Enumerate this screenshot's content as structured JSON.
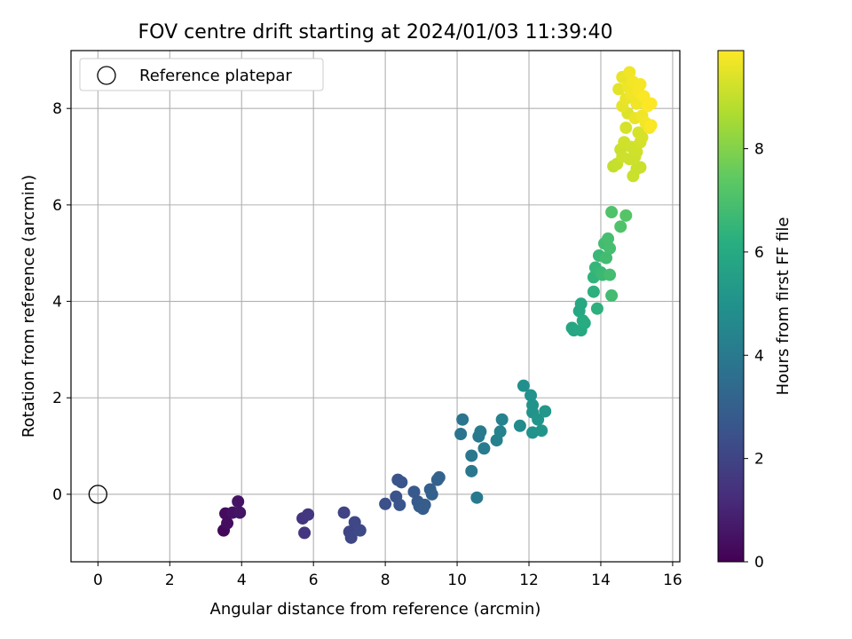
{
  "chart_data": {
    "type": "scatter",
    "title": "FOV centre drift starting at 2024/01/03 11:39:40",
    "xlabel": "Angular distance from reference (arcmin)",
    "ylabel": "Rotation from reference (arcmin)",
    "xlim": [
      -0.75,
      16.2
    ],
    "ylim": [
      -1.4,
      9.2
    ],
    "xticks": [
      0,
      2,
      4,
      6,
      8,
      10,
      12,
      14,
      16
    ],
    "yticks": [
      0,
      2,
      4,
      6,
      8
    ],
    "grid": true,
    "legend": {
      "position": "upper-left",
      "entries": [
        "Reference platepar"
      ]
    },
    "reference_point": {
      "x": 0,
      "y": 0,
      "marker": "open-circle"
    },
    "colorbar": {
      "label": "Hours from first FF file",
      "colormap": "viridis",
      "range": [
        0,
        9.9
      ],
      "ticks": [
        0,
        2,
        4,
        6,
        8
      ]
    },
    "series": [
      {
        "marker": "filled-circle",
        "points": [
          {
            "x": 3.5,
            "y": -0.75,
            "h": 0.2
          },
          {
            "x": 3.55,
            "y": -0.4,
            "h": 0.3
          },
          {
            "x": 3.6,
            "y": -0.6,
            "h": 0.35
          },
          {
            "x": 3.75,
            "y": -0.38,
            "h": 0.45
          },
          {
            "x": 3.9,
            "y": -0.15,
            "h": 0.5
          },
          {
            "x": 3.95,
            "y": -0.38,
            "h": 0.55
          },
          {
            "x": 5.7,
            "y": -0.5,
            "h": 1.5
          },
          {
            "x": 5.75,
            "y": -0.8,
            "h": 1.55
          },
          {
            "x": 5.85,
            "y": -0.42,
            "h": 1.6
          },
          {
            "x": 6.85,
            "y": -0.38,
            "h": 2.0
          },
          {
            "x": 7.0,
            "y": -0.78,
            "h": 2.05
          },
          {
            "x": 7.05,
            "y": -0.9,
            "h": 2.1
          },
          {
            "x": 7.15,
            "y": -0.58,
            "h": 2.1
          },
          {
            "x": 7.3,
            "y": -0.75,
            "h": 2.2
          },
          {
            "x": 8.0,
            "y": -0.2,
            "h": 2.4
          },
          {
            "x": 8.3,
            "y": -0.05,
            "h": 2.5
          },
          {
            "x": 8.35,
            "y": 0.3,
            "h": 2.55
          },
          {
            "x": 8.4,
            "y": -0.22,
            "h": 2.6
          },
          {
            "x": 8.45,
            "y": 0.25,
            "h": 2.6
          },
          {
            "x": 8.8,
            "y": 0.05,
            "h": 2.75
          },
          {
            "x": 8.9,
            "y": -0.15,
            "h": 2.8
          },
          {
            "x": 8.95,
            "y": -0.25,
            "h": 2.85
          },
          {
            "x": 9.05,
            "y": -0.3,
            "h": 2.9
          },
          {
            "x": 9.1,
            "y": -0.22,
            "h": 2.9
          },
          {
            "x": 9.25,
            "y": 0.1,
            "h": 3.0
          },
          {
            "x": 9.3,
            "y": 0.0,
            "h": 3.05
          },
          {
            "x": 9.45,
            "y": 0.3,
            "h": 3.1
          },
          {
            "x": 9.5,
            "y": 0.35,
            "h": 3.15
          },
          {
            "x": 10.1,
            "y": 1.25,
            "h": 3.8
          },
          {
            "x": 10.15,
            "y": 1.55,
            "h": 3.85
          },
          {
            "x": 10.4,
            "y": 0.8,
            "h": 3.9
          },
          {
            "x": 10.4,
            "y": 0.48,
            "h": 3.95
          },
          {
            "x": 10.55,
            "y": -0.07,
            "h": 4.0
          },
          {
            "x": 10.6,
            "y": 1.2,
            "h": 4.0
          },
          {
            "x": 10.65,
            "y": 1.3,
            "h": 4.05
          },
          {
            "x": 10.75,
            "y": 0.95,
            "h": 4.1
          },
          {
            "x": 11.1,
            "y": 1.12,
            "h": 4.3
          },
          {
            "x": 11.2,
            "y": 1.3,
            "h": 4.35
          },
          {
            "x": 11.25,
            "y": 1.55,
            "h": 4.4
          },
          {
            "x": 11.75,
            "y": 1.42,
            "h": 4.7
          },
          {
            "x": 11.85,
            "y": 2.25,
            "h": 4.9
          },
          {
            "x": 12.05,
            "y": 2.05,
            "h": 5.0
          },
          {
            "x": 12.1,
            "y": 1.85,
            "h": 5.05
          },
          {
            "x": 12.1,
            "y": 1.7,
            "h": 5.05
          },
          {
            "x": 12.1,
            "y": 1.28,
            "h": 5.0
          },
          {
            "x": 12.25,
            "y": 1.55,
            "h": 5.1
          },
          {
            "x": 12.35,
            "y": 1.32,
            "h": 5.1
          },
          {
            "x": 12.45,
            "y": 1.72,
            "h": 5.2
          },
          {
            "x": 13.2,
            "y": 3.45,
            "h": 5.8
          },
          {
            "x": 13.25,
            "y": 3.4,
            "h": 5.85
          },
          {
            "x": 13.4,
            "y": 3.8,
            "h": 5.9
          },
          {
            "x": 13.45,
            "y": 3.95,
            "h": 5.95
          },
          {
            "x": 13.45,
            "y": 3.4,
            "h": 5.95
          },
          {
            "x": 13.5,
            "y": 3.6,
            "h": 6.0
          },
          {
            "x": 13.55,
            "y": 3.55,
            "h": 6.05
          },
          {
            "x": 13.8,
            "y": 4.2,
            "h": 6.3
          },
          {
            "x": 13.8,
            "y": 4.5,
            "h": 6.4
          },
          {
            "x": 13.85,
            "y": 4.7,
            "h": 6.5
          },
          {
            "x": 13.9,
            "y": 3.85,
            "h": 6.3
          },
          {
            "x": 13.95,
            "y": 4.95,
            "h": 6.6
          },
          {
            "x": 14.0,
            "y": 4.6,
            "h": 6.6
          },
          {
            "x": 14.05,
            "y": 4.55,
            "h": 6.65
          },
          {
            "x": 14.1,
            "y": 5.2,
            "h": 6.8
          },
          {
            "x": 14.15,
            "y": 4.9,
            "h": 6.8
          },
          {
            "x": 14.2,
            "y": 5.3,
            "h": 6.9
          },
          {
            "x": 14.25,
            "y": 5.1,
            "h": 6.9
          },
          {
            "x": 14.25,
            "y": 4.55,
            "h": 6.85
          },
          {
            "x": 14.3,
            "y": 5.85,
            "h": 7.1
          },
          {
            "x": 14.3,
            "y": 4.12,
            "h": 6.8
          },
          {
            "x": 14.55,
            "y": 5.55,
            "h": 7.1
          },
          {
            "x": 14.7,
            "y": 5.78,
            "h": 7.2
          },
          {
            "x": 14.35,
            "y": 6.8,
            "h": 9.0
          },
          {
            "x": 14.45,
            "y": 6.85,
            "h": 9.05
          },
          {
            "x": 14.55,
            "y": 7.15,
            "h": 9.1
          },
          {
            "x": 14.6,
            "y": 7.0,
            "h": 9.15
          },
          {
            "x": 14.65,
            "y": 7.3,
            "h": 9.2
          },
          {
            "x": 14.7,
            "y": 7.6,
            "h": 9.3
          },
          {
            "x": 14.75,
            "y": 7.9,
            "h": 9.4
          },
          {
            "x": 14.8,
            "y": 6.95,
            "h": 9.15
          },
          {
            "x": 14.85,
            "y": 7.2,
            "h": 9.2
          },
          {
            "x": 14.9,
            "y": 6.6,
            "h": 9.1
          },
          {
            "x": 14.95,
            "y": 7.0,
            "h": 9.15
          },
          {
            "x": 15.0,
            "y": 7.1,
            "h": 9.2
          },
          {
            "x": 15.0,
            "y": 6.75,
            "h": 9.1
          },
          {
            "x": 15.05,
            "y": 7.5,
            "h": 9.3
          },
          {
            "x": 15.1,
            "y": 7.3,
            "h": 9.25
          },
          {
            "x": 15.1,
            "y": 6.78,
            "h": 9.1
          },
          {
            "x": 15.15,
            "y": 7.4,
            "h": 9.3
          },
          {
            "x": 14.5,
            "y": 8.4,
            "h": 9.5
          },
          {
            "x": 14.6,
            "y": 8.65,
            "h": 9.6
          },
          {
            "x": 14.6,
            "y": 8.05,
            "h": 9.55
          },
          {
            "x": 14.7,
            "y": 8.2,
            "h": 9.6
          },
          {
            "x": 14.75,
            "y": 8.45,
            "h": 9.65
          },
          {
            "x": 14.8,
            "y": 8.75,
            "h": 9.7
          },
          {
            "x": 14.85,
            "y": 8.3,
            "h": 9.7
          },
          {
            "x": 14.9,
            "y": 8.55,
            "h": 9.75
          },
          {
            "x": 14.95,
            "y": 7.8,
            "h": 9.6
          },
          {
            "x": 15.0,
            "y": 8.1,
            "h": 9.7
          },
          {
            "x": 15.05,
            "y": 8.35,
            "h": 9.8
          },
          {
            "x": 15.1,
            "y": 8.5,
            "h": 9.8
          },
          {
            "x": 15.15,
            "y": 7.85,
            "h": 9.7
          },
          {
            "x": 15.2,
            "y": 8.25,
            "h": 9.85
          },
          {
            "x": 15.25,
            "y": 7.7,
            "h": 9.75
          },
          {
            "x": 15.3,
            "y": 8.05,
            "h": 9.85
          },
          {
            "x": 15.35,
            "y": 7.6,
            "h": 9.8
          },
          {
            "x": 15.4,
            "y": 8.1,
            "h": 9.9
          },
          {
            "x": 15.4,
            "y": 7.65,
            "h": 9.85
          }
        ]
      }
    ]
  }
}
